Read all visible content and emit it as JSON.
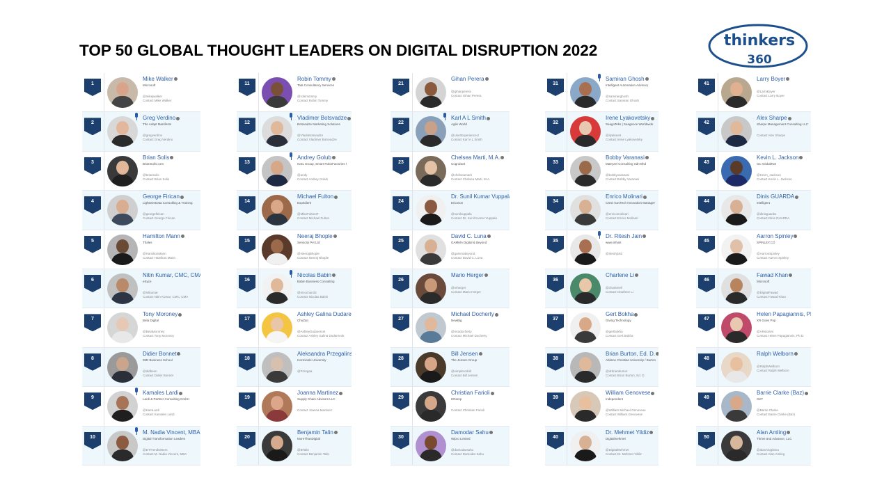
{
  "title": "TOP 50 GLOBAL THOUGHT LEADERS ON DIGITAL DISRUPTION 2022",
  "logo": {
    "main": "thinkers",
    "sub": "360"
  },
  "colors": {
    "brand": "#1d4f8c",
    "badge": "#1c3f6e",
    "name": "#2e5fa6",
    "row_alt": "#eef8fc"
  },
  "columns": [
    [
      {
        "rank": "1",
        "name": "Mike Walker",
        "org": "Microsoft",
        "handle": "@mikejwalker",
        "contact": "Contact Mike Walker",
        "mic": false,
        "skin": "#d9a58a",
        "shirt": "#444444",
        "bg": "#c9b9a8"
      },
      {
        "rank": "2",
        "name": "Greg Verdino",
        "org": "The Adapt Manifesto",
        "handle": "@gregverdino",
        "contact": "Contact Greg Verdino",
        "mic": true,
        "skin": "#e2b79b",
        "shirt": "#2b2b2b",
        "bg": "#d8d8d8"
      },
      {
        "rank": "3",
        "name": "Brian Solis",
        "org": "BrianSolis.com",
        "handle": "@briansolis",
        "contact": "Contact Brian Solis",
        "mic": false,
        "skin": "#e0b899",
        "shirt": "#1f1f1f",
        "bg": "#3a3a3a"
      },
      {
        "rank": "4",
        "name": "George Firican",
        "org": "LightsOnData Consulting & Training",
        "handle": "@georgefirican",
        "contact": "Contact George Firican",
        "mic": false,
        "skin": "#d9ad8f",
        "shirt": "#3d4a5c",
        "bg": "#cfcfcf"
      },
      {
        "rank": "5",
        "name": "Hamilton Mann",
        "org": "Thales",
        "handle": "@HamiltonMann",
        "contact": "Contact Hamilton Mann",
        "mic": false,
        "skin": "#6b4a35",
        "shirt": "#1a1a1a",
        "bg": "#b5b5b5"
      },
      {
        "rank": "6",
        "name": "Nitin Kumar, CMC, CMA",
        "org": "eSyce",
        "handle": "@nitkumar",
        "contact": "Contact Nitin Kumar, CMC, CMA",
        "mic": false,
        "skin": "#b88a6a",
        "shirt": "#2c3545",
        "bg": "#c0c0c0"
      },
      {
        "rank": "7",
        "name": "Tony Moroney",
        "org": "Beta Digital",
        "handle": "@BetaMoroney",
        "contact": "Contact Tony Moroney",
        "mic": false,
        "skin": "#e6c9b5",
        "shirt": "#e8e8e8",
        "bg": "#d6d6d6"
      },
      {
        "rank": "8",
        "name": "Didier Bonnet",
        "org": "IMD Business School",
        "handle": "@didbeon",
        "contact": "Contact Didier Bonnet",
        "mic": false,
        "skin": "#c9a58c",
        "shirt": "#2a2f3a",
        "bg": "#9a9a9a"
      },
      {
        "rank": "9",
        "name": "Kamales Lardi",
        "org": "Lardi & Partner Consulting GmbH",
        "handle": "@KamLardi",
        "contact": "Contact Kamales Lardi",
        "mic": true,
        "skin": "#a87458",
        "shirt": "#1f1f1f",
        "bg": "#d2d2d2"
      },
      {
        "rank": "10",
        "name": "M. Nadia Vincent, MBA",
        "org": "Digital Transformation Leaders",
        "handle": "@DTTrendsetters",
        "contact": "Contact M. Nadia Vincent, MBA",
        "mic": true,
        "skin": "#8c5a40",
        "shirt": "#2a2a2a",
        "bg": "#c8c8c8"
      }
    ],
    [
      {
        "rank": "11",
        "name": "Robin Tommy",
        "org": "Tata Consultancy Services",
        "handle": "@robintommy",
        "contact": "Contact Robin Tommy",
        "mic": false,
        "skin": "#7a5038",
        "shirt": "#3a3a3a",
        "bg": "#7b4fb2"
      },
      {
        "rank": "12",
        "name": "Vladimer Botsvadze",
        "org": "Botsvadze Marketing Solutions",
        "handle": "@VladoBotsvadze",
        "contact": "Contact Vladimer Botsvadze",
        "mic": true,
        "skin": "#e0b89a",
        "shirt": "#2b2f3a",
        "bg": "#dcdcdc"
      },
      {
        "rank": "13",
        "name": "Andrey Golub",
        "org": "ICEL Group, Smart RoboFactories I",
        "handle": "@andy",
        "contact": "Contact Andrey Golub",
        "mic": true,
        "skin": "#d6a789",
        "shirt": "#1e2a44",
        "bg": "#c4c4c4"
      },
      {
        "rank": "14",
        "name": "Michael Fulton",
        "org": "Expedient",
        "handle": "@MikeFultonIT",
        "contact": "Contact Michael Fulton",
        "mic": false,
        "skin": "#d9a888",
        "shirt": "#2a3340",
        "bg": "#9c6a4a"
      },
      {
        "rank": "15",
        "name": "Neeraj Bhople",
        "org": "Senscity Pvt Ltd",
        "handle": "@NeerajBhople",
        "contact": "Contact Neeraj Bhople",
        "mic": false,
        "skin": "#9a6a4a",
        "shirt": "#f0f0f0",
        "bg": "#5a3a2a"
      },
      {
        "rank": "16",
        "name": "Nicolas Babin",
        "org": "Babin Business Consulting",
        "handle": "@nicochan33",
        "contact": "Contact Nicolas Babin",
        "mic": true,
        "skin": "#e0b89a",
        "shirt": "#2a2a2a",
        "bg": "#f2f2f2"
      },
      {
        "rank": "17",
        "name": "Ashley Galina Dudarenok",
        "org": "ChoZan",
        "handle": "@AshleyDudarenok",
        "contact": "Contact Ashley Galina Dudarenok",
        "mic": false,
        "skin": "#eac6a8",
        "shirt": "#f5f5f5",
        "bg": "#f4c542"
      },
      {
        "rank": "18",
        "name": "Aleksandra Przegalinska",
        "org": "Kozminski University",
        "handle": "@Przegaa",
        "contact": "",
        "mic": false,
        "skin": "#d8c0ae",
        "shirt": "#3a3a3a",
        "bg": "#bfbfbf"
      },
      {
        "rank": "19",
        "name": "Joanna Martinez",
        "org": "Supply Chain Advisors LLC",
        "handle": "Contact Joanna Martinez",
        "contact": "",
        "mic": false,
        "skin": "#dca68a",
        "shirt": "#8a3a3a",
        "bg": "#b07a5a"
      },
      {
        "rank": "20",
        "name": "Benjamin Talin",
        "org": "MoreThanDigital",
        "handle": "@BTalin",
        "contact": "Contact Benjamin Talin",
        "mic": false,
        "skin": "#d6aa8c",
        "shirt": "#1a1a1a",
        "bg": "#3a3a3a"
      }
    ],
    [
      {
        "rank": "21",
        "name": "Gihan Perera",
        "org": "",
        "handle": "@gihanperera",
        "contact": "Contact Gihan Perera",
        "mic": false,
        "skin": "#8a5a3e",
        "shirt": "#2a2a2a",
        "bg": "#d4d4d4"
      },
      {
        "rank": "22",
        "name": "Karl A L Smith",
        "org": "Agile World",
        "handle": "@UserExperienceU",
        "contact": "Contact Karl A L Smith",
        "mic": true,
        "skin": "#c9a088",
        "shirt": "#2a2a2a",
        "bg": "#8aa0b8"
      },
      {
        "rank": "23",
        "name": "Chelsea Marti, M.A.",
        "org": "Cognizant",
        "handle": "@chelseamarti",
        "contact": "Contact Chelsea Marti, M.A.",
        "mic": false,
        "skin": "#e4c2a6",
        "shirt": "#2a2a2a",
        "bg": "#7a6a5a"
      },
      {
        "rank": "24",
        "name": "Dr. Sunil Kumar Vuppala",
        "org": "Ericsson",
        "handle": "@sunilvuppala",
        "contact": "Contact Dr. Sunil Kumar Vuppala",
        "mic": false,
        "skin": "#8a5a40",
        "shirt": "#1a1a1a",
        "bg": "#f0f0f0"
      },
      {
        "rank": "25",
        "name": "David C. Luna",
        "org": "GAMMA Digital & Beyond",
        "handle": "@gammabeyond",
        "contact": "Contact David C. Luna",
        "mic": false,
        "skin": "#d8b094",
        "shirt": "#3a3a3a",
        "bg": "#e0e0e0"
      },
      {
        "rank": "26",
        "name": "Mario Herger",
        "org": "",
        "handle": "@mherger",
        "contact": "Contact Mario Herger",
        "mic": false,
        "skin": "#c99a7a",
        "shirt": "#2a2a2a",
        "bg": "#6a4a3a"
      },
      {
        "rank": "27",
        "name": "Michael Docherty",
        "org": "NewBig",
        "handle": "@mradocherty",
        "contact": "Contact Michael Docherty",
        "mic": false,
        "skin": "#e0b89c",
        "shirt": "#5a7a9a",
        "bg": "#c0c8d0"
      },
      {
        "rank": "28",
        "name": "Bill Jensen",
        "org": "The Jensen Group",
        "handle": "@simplerorbill",
        "contact": "Contact Bill Jensen",
        "mic": false,
        "skin": "#d6a688",
        "shirt": "#1a1a1a",
        "bg": "#4a3a2a"
      },
      {
        "rank": "29",
        "name": "Christian Farioli",
        "org": "HRamp",
        "handle": "Contact Christian Farioli",
        "contact": "",
        "mic": false,
        "skin": "#d4a888",
        "shirt": "#2a2a2a",
        "bg": "#3a3a3a"
      },
      {
        "rank": "30",
        "name": "Damodar Sahu",
        "org": "Wipro Limited",
        "handle": "@damodarsahu",
        "contact": "Contact Damodar Sahu",
        "mic": false,
        "skin": "#7a4a30",
        "shirt": "#2a2a2a",
        "bg": "#b090d0"
      }
    ],
    [
      {
        "rank": "31",
        "name": "Samiran Ghosh",
        "org": "Intelligent Automation Advisory",
        "handle": "@samiranghosh",
        "contact": "Contact Samiran Ghosh",
        "mic": true,
        "skin": "#a87050",
        "shirt": "#2a2a2a",
        "bg": "#8aa8c8"
      },
      {
        "rank": "32",
        "name": "Irene Lyakovetsky",
        "org": "SeagoTeks | Seagence Worldwide",
        "handle": "@ilyakovet",
        "contact": "Contact Irene Lyakovetsky",
        "mic": false,
        "skin": "#e8c8b0",
        "shirt": "#2a2a2a",
        "bg": "#d83a3a"
      },
      {
        "rank": "33",
        "name": "Bobby Varanasi",
        "org": "Matryzel Consulting Sdn Bhd",
        "handle": "@bobbyvaranasi",
        "contact": "Contact Bobby Varanasi",
        "mic": false,
        "skin": "#9a6a4a",
        "shirt": "#2a2a2a",
        "bg": "#c8c8c8"
      },
      {
        "rank": "34",
        "name": "Enrico Molinari",
        "org": "CSIO GovTech Innovation Manager",
        "handle": "@enricomolinari",
        "contact": "Contact Enrico Molinari",
        "mic": false,
        "skin": "#d8b094",
        "shirt": "#3a3a3a",
        "bg": "#e0e0e0"
      },
      {
        "rank": "35",
        "name": "Dr. Ritesh Jain",
        "org": "www.infynit",
        "handle": "@riteshj182",
        "contact": "",
        "mic": true,
        "skin": "#a87050",
        "shirt": "#1a1a1a",
        "bg": "#e8e8e8"
      },
      {
        "rank": "36",
        "name": "Charlene Li",
        "org": "",
        "handle": "@charleneli",
        "contact": "Contact Charlene Li",
        "mic": false,
        "skin": "#e8c8a8",
        "shirt": "#2a2a2a",
        "bg": "#4a8a6a"
      },
      {
        "rank": "37",
        "name": "Gert Bokha",
        "org": "Giving Technology",
        "handle": "@gertbokha",
        "contact": "Contact Gert Bokha",
        "mic": false,
        "skin": "#d8a888",
        "shirt": "#3a3a3a",
        "bg": "#f0f0f0"
      },
      {
        "rank": "38",
        "name": "Brian Burton, Ed. D.",
        "org": "Abilene Christian University / Burton",
        "handle": "@drbrianburton",
        "contact": "Contact Brian Burton, Ed. D.",
        "mic": false,
        "skin": "#e0b89a",
        "shirt": "#2a2a2a",
        "bg": "#b8b8b8"
      },
      {
        "rank": "39",
        "name": "William Genovese",
        "org": "Independent",
        "handle": "@William Michael Genovese",
        "contact": "Contact William Genovese",
        "mic": false,
        "skin": "#e8c0a0",
        "shirt": "#2a2a2a",
        "bg": "#d8c8b8"
      },
      {
        "rank": "40",
        "name": "Dr. Mehmet Yildiz",
        "org": "Digitalmehmet",
        "handle": "@DigitalMehmet",
        "contact": "Contact Dr. Mehmet Yildiz",
        "mic": false,
        "skin": "#d8b094",
        "shirt": "#1a1a1a",
        "bg": "#f0f0f0"
      }
    ],
    [
      {
        "rank": "41",
        "name": "Larry Boyer",
        "org": "",
        "handle": "@LarryBoyer",
        "contact": "Contact Larry Boyer",
        "mic": false,
        "skin": "#e0b090",
        "shirt": "#2a2a2a",
        "bg": "#b8a890"
      },
      {
        "rank": "42",
        "name": "Alex Sharpe",
        "org": "Sharpe Management Consulting LLC",
        "handle": "Contact Alex Sharpe",
        "contact": "",
        "mic": false,
        "skin": "#e0b89a",
        "shirt": "#1e2a44",
        "bg": "#c8c8c8"
      },
      {
        "rank": "43",
        "name": "Kevin L. Jackson",
        "org": "GC GlobalNet",
        "handle": "@Kevin_Jackson",
        "contact": "Contact Kevin L. Jackson",
        "mic": false,
        "skin": "#5a3a28",
        "shirt": "#1e2a66",
        "bg": "#3a6ab0"
      },
      {
        "rank": "44",
        "name": "Dinis GUARDA",
        "org": "intelligent",
        "handle": "@dinisguarda",
        "contact": "Contact Dinis GUARDA",
        "mic": false,
        "skin": "#d8b094",
        "shirt": "#1a1a1a",
        "bg": "#e8e8e8"
      },
      {
        "rank": "45",
        "name": "Aarron Spinley",
        "org": "SPINLEY.CO",
        "handle": "@AarronSpinley",
        "contact": "Contact Aarron Spinley",
        "mic": false,
        "skin": "#e0c0a8",
        "shirt": "#1a1a1a",
        "bg": "#f2f2f2"
      },
      {
        "rank": "46",
        "name": "Fawad Khan",
        "org": "Microsoft",
        "handle": "@DigitalFawad",
        "contact": "Contact Fawad Khan",
        "mic": false,
        "skin": "#b8845e",
        "shirt": "#2a2a2a",
        "bg": "#e0e0e0"
      },
      {
        "rank": "47",
        "name": "Helen Papagiannis, Ph.D.",
        "org": "XR Goes Pop",
        "handle": "@ARstories",
        "contact": "Contact Helen Papagiannis, Ph.D.",
        "mic": false,
        "skin": "#e8c8b0",
        "shirt": "#2a2a2a",
        "bg": "#c04a6a"
      },
      {
        "rank": "48",
        "name": "Ralph Welborn",
        "org": "",
        "handle": "@RalphWelborn",
        "contact": "Contact Ralph Welborn",
        "mic": false,
        "skin": "#e8c0a0",
        "shirt": "#e8e8e8",
        "bg": "#e8d8c8"
      },
      {
        "rank": "49",
        "name": "Barrie Clarke (Baz)",
        "org": "GKT",
        "handle": "@Barrie Clarke",
        "contact": "Contact Barrie Clarke (Baz)",
        "mic": false,
        "skin": "#d8a888",
        "shirt": "#3a3a3a",
        "bg": "#a8b8c8"
      },
      {
        "rank": "50",
        "name": "Alan Amling",
        "org": "Thrive and Advance, LLC",
        "handle": "@alanAlogistics",
        "contact": "Contact Alan Amling",
        "mic": false,
        "skin": "#d8b89c",
        "shirt": "#2a2a2a",
        "bg": "#3a3a3a"
      }
    ]
  ]
}
